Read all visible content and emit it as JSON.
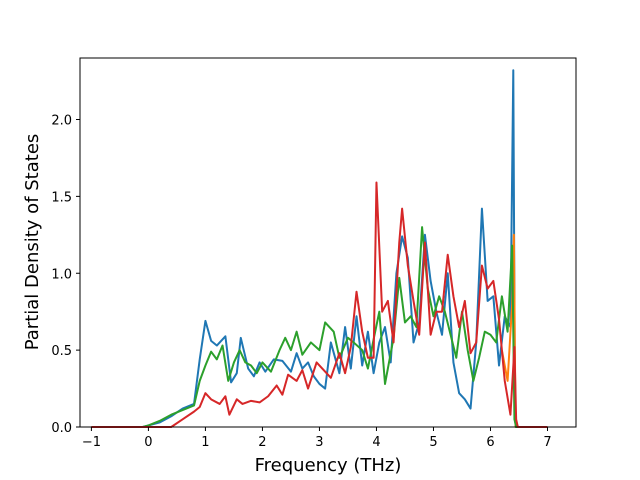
{
  "chart_data": {
    "type": "line",
    "title": "",
    "xlabel": "Frequency (THz)",
    "ylabel": "Partial Density of States",
    "xlim": [
      -1.2,
      7.5
    ],
    "ylim": [
      0,
      2.4
    ],
    "x_ticks": [
      "−1",
      "0",
      "1",
      "2",
      "3",
      "4",
      "5",
      "6",
      "7"
    ],
    "y_ticks": [
      "0.0",
      "0.5",
      "1.0",
      "1.5",
      "2.0"
    ],
    "grid": false,
    "legend": "none",
    "series": [
      {
        "color": "#1f77b4",
        "points": [
          [
            -1,
            0
          ],
          [
            -0.1,
            0
          ],
          [
            0,
            0.01
          ],
          [
            0.2,
            0.03
          ],
          [
            0.4,
            0.07
          ],
          [
            0.6,
            0.12
          ],
          [
            0.8,
            0.15
          ],
          [
            0.9,
            0.44
          ],
          [
            1.0,
            0.69
          ],
          [
            1.1,
            0.56
          ],
          [
            1.2,
            0.53
          ],
          [
            1.35,
            0.59
          ],
          [
            1.45,
            0.29
          ],
          [
            1.55,
            0.35
          ],
          [
            1.62,
            0.58
          ],
          [
            1.75,
            0.38
          ],
          [
            1.85,
            0.33
          ],
          [
            1.95,
            0.42
          ],
          [
            2.05,
            0.36
          ],
          [
            2.2,
            0.44
          ],
          [
            2.35,
            0.43
          ],
          [
            2.5,
            0.36
          ],
          [
            2.6,
            0.48
          ],
          [
            2.7,
            0.38
          ],
          [
            2.8,
            0.42
          ],
          [
            2.9,
            0.33
          ],
          [
            3.0,
            0.28
          ],
          [
            3.1,
            0.25
          ],
          [
            3.2,
            0.55
          ],
          [
            3.35,
            0.35
          ],
          [
            3.45,
            0.65
          ],
          [
            3.55,
            0.38
          ],
          [
            3.65,
            0.72
          ],
          [
            3.75,
            0.4
          ],
          [
            3.85,
            0.62
          ],
          [
            3.95,
            0.35
          ],
          [
            4.05,
            0.55
          ],
          [
            4.15,
            0.65
          ],
          [
            4.25,
            0.42
          ],
          [
            4.35,
            1.0
          ],
          [
            4.45,
            1.24
          ],
          [
            4.55,
            1.1
          ],
          [
            4.65,
            0.55
          ],
          [
            4.75,
            0.68
          ],
          [
            4.85,
            1.25
          ],
          [
            4.95,
            0.95
          ],
          [
            5.05,
            0.75
          ],
          [
            5.15,
            0.6
          ],
          [
            5.25,
            1.0
          ],
          [
            5.35,
            0.42
          ],
          [
            5.45,
            0.22
          ],
          [
            5.55,
            0.18
          ],
          [
            5.65,
            0.12
          ],
          [
            5.75,
            0.55
          ],
          [
            5.85,
            1.42
          ],
          [
            5.95,
            0.82
          ],
          [
            6.05,
            0.85
          ],
          [
            6.15,
            0.4
          ],
          [
            6.25,
            0.72
          ],
          [
            6.35,
            0.65
          ],
          [
            6.4,
            2.32
          ],
          [
            6.43,
            0.05
          ],
          [
            6.45,
            0
          ],
          [
            7.0,
            0
          ]
        ]
      },
      {
        "color": "#ff7f0e",
        "points": [
          [
            6.2,
            0.5
          ],
          [
            6.3,
            0.3
          ],
          [
            6.38,
            0.8
          ],
          [
            6.41,
            1.25
          ],
          [
            6.44,
            0.0
          ],
          [
            6.5,
            0
          ]
        ]
      },
      {
        "color": "#2ca02c",
        "points": [
          [
            -1,
            0
          ],
          [
            -0.1,
            0
          ],
          [
            0,
            0.01
          ],
          [
            0.2,
            0.04
          ],
          [
            0.4,
            0.08
          ],
          [
            0.6,
            0.11
          ],
          [
            0.8,
            0.14
          ],
          [
            0.9,
            0.3
          ],
          [
            1.0,
            0.4
          ],
          [
            1.1,
            0.49
          ],
          [
            1.2,
            0.44
          ],
          [
            1.3,
            0.53
          ],
          [
            1.4,
            0.3
          ],
          [
            1.5,
            0.42
          ],
          [
            1.6,
            0.5
          ],
          [
            1.7,
            0.42
          ],
          [
            1.8,
            0.4
          ],
          [
            1.9,
            0.35
          ],
          [
            2.0,
            0.42
          ],
          [
            2.15,
            0.36
          ],
          [
            2.3,
            0.5
          ],
          [
            2.4,
            0.58
          ],
          [
            2.5,
            0.5
          ],
          [
            2.6,
            0.62
          ],
          [
            2.7,
            0.47
          ],
          [
            2.85,
            0.55
          ],
          [
            3.0,
            0.5
          ],
          [
            3.1,
            0.68
          ],
          [
            3.25,
            0.62
          ],
          [
            3.35,
            0.45
          ],
          [
            3.5,
            0.58
          ],
          [
            3.6,
            0.55
          ],
          [
            3.75,
            0.5
          ],
          [
            3.85,
            0.38
          ],
          [
            3.95,
            0.57
          ],
          [
            4.05,
            0.75
          ],
          [
            4.15,
            0.28
          ],
          [
            4.3,
            0.58
          ],
          [
            4.4,
            0.97
          ],
          [
            4.5,
            0.68
          ],
          [
            4.6,
            0.72
          ],
          [
            4.7,
            0.65
          ],
          [
            4.8,
            1.3
          ],
          [
            4.9,
            0.9
          ],
          [
            5.0,
            0.72
          ],
          [
            5.1,
            0.85
          ],
          [
            5.2,
            0.75
          ],
          [
            5.3,
            0.6
          ],
          [
            5.4,
            0.45
          ],
          [
            5.5,
            0.75
          ],
          [
            5.6,
            0.5
          ],
          [
            5.7,
            0.3
          ],
          [
            5.8,
            0.45
          ],
          [
            5.9,
            0.62
          ],
          [
            6.0,
            0.6
          ],
          [
            6.1,
            0.55
          ],
          [
            6.2,
            0.85
          ],
          [
            6.3,
            0.62
          ],
          [
            6.38,
            1.18
          ],
          [
            6.42,
            0.05
          ],
          [
            6.45,
            0
          ],
          [
            7.0,
            0
          ]
        ]
      },
      {
        "color": "#d62728",
        "points": [
          [
            -1,
            0
          ],
          [
            0.4,
            0
          ],
          [
            0.6,
            0.05
          ],
          [
            0.8,
            0.1
          ],
          [
            0.9,
            0.13
          ],
          [
            1.0,
            0.22
          ],
          [
            1.1,
            0.18
          ],
          [
            1.25,
            0.15
          ],
          [
            1.35,
            0.2
          ],
          [
            1.42,
            0.08
          ],
          [
            1.55,
            0.18
          ],
          [
            1.65,
            0.15
          ],
          [
            1.8,
            0.17
          ],
          [
            1.95,
            0.16
          ],
          [
            2.1,
            0.2
          ],
          [
            2.25,
            0.27
          ],
          [
            2.35,
            0.21
          ],
          [
            2.45,
            0.34
          ],
          [
            2.6,
            0.3
          ],
          [
            2.7,
            0.37
          ],
          [
            2.8,
            0.25
          ],
          [
            2.95,
            0.42
          ],
          [
            3.05,
            0.38
          ],
          [
            3.2,
            0.32
          ],
          [
            3.35,
            0.48
          ],
          [
            3.45,
            0.35
          ],
          [
            3.55,
            0.52
          ],
          [
            3.65,
            0.88
          ],
          [
            3.75,
            0.62
          ],
          [
            3.85,
            0.45
          ],
          [
            3.95,
            0.45
          ],
          [
            4.0,
            1.59
          ],
          [
            4.1,
            0.75
          ],
          [
            4.2,
            0.82
          ],
          [
            4.3,
            0.55
          ],
          [
            4.4,
            1.2
          ],
          [
            4.45,
            1.42
          ],
          [
            4.55,
            1.05
          ],
          [
            4.65,
            0.82
          ],
          [
            4.75,
            0.6
          ],
          [
            4.85,
            1.2
          ],
          [
            4.95,
            0.6
          ],
          [
            5.05,
            0.75
          ],
          [
            5.15,
            0.75
          ],
          [
            5.25,
            1.12
          ],
          [
            5.35,
            0.85
          ],
          [
            5.45,
            0.65
          ],
          [
            5.55,
            0.82
          ],
          [
            5.65,
            0.48
          ],
          [
            5.75,
            0.55
          ],
          [
            5.85,
            1.05
          ],
          [
            5.95,
            0.9
          ],
          [
            6.05,
            0.95
          ],
          [
            6.15,
            0.7
          ],
          [
            6.25,
            0.3
          ],
          [
            6.35,
            0.08
          ],
          [
            6.42,
            0.52
          ],
          [
            6.45,
            0.05
          ],
          [
            6.48,
            0
          ],
          [
            7.0,
            0
          ]
        ]
      }
    ]
  }
}
